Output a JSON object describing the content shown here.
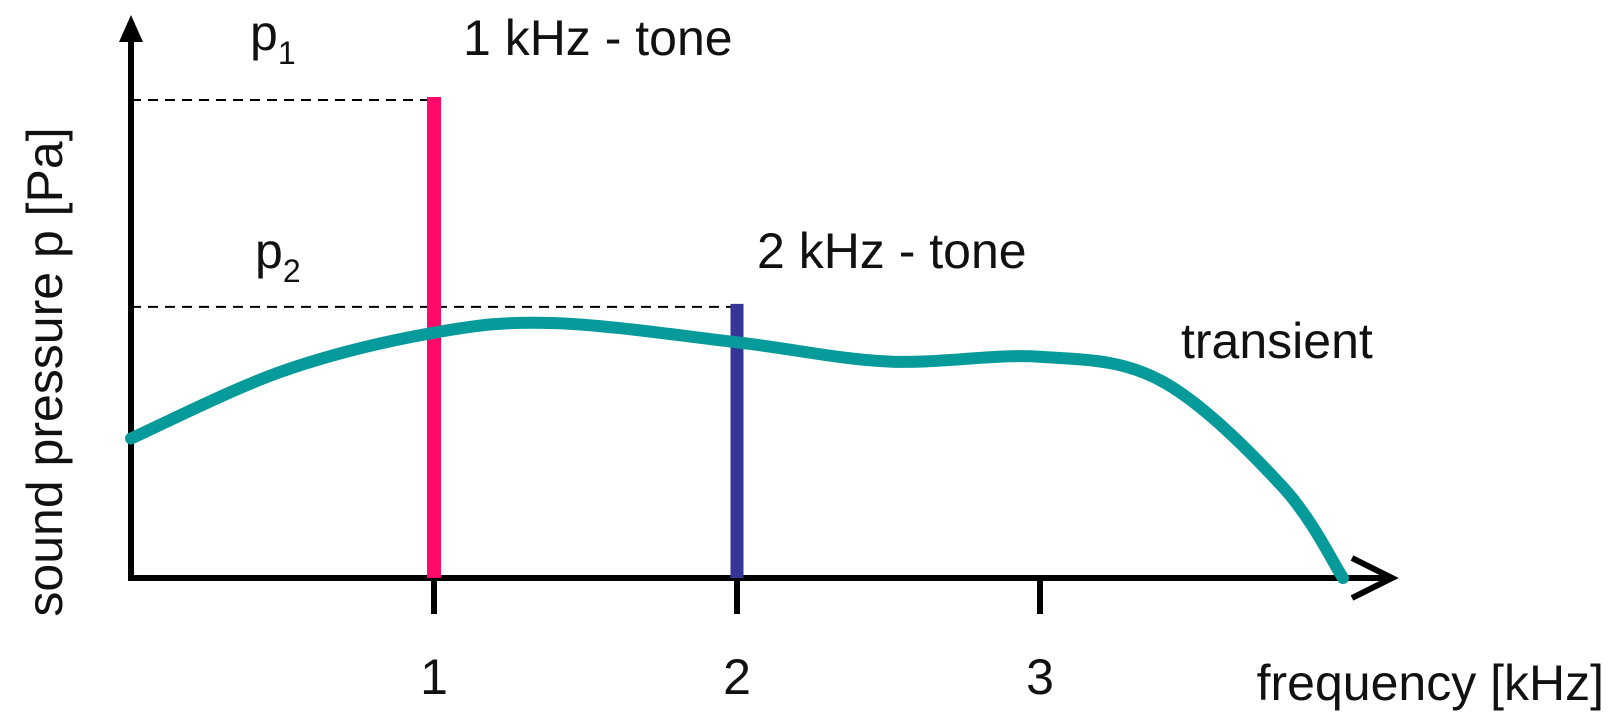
{
  "chart_data": {
    "type": "line",
    "ylabel": "sound pressure p [Pa]",
    "xlabel": "frequency [kHz]",
    "x_ticks": [
      "1",
      "2",
      "3"
    ],
    "xlim": [
      0,
      4.15
    ],
    "ylim": [
      0,
      1
    ],
    "grid": false,
    "legend": "none",
    "series": [
      {
        "name": "transient",
        "x": [
          0,
          0.5,
          1,
          1.4,
          2,
          2.5,
          3,
          3.4,
          3.8,
          4.0
        ],
        "y": [
          0.29,
          0.43,
          0.51,
          0.53,
          0.49,
          0.45,
          0.46,
          0.41,
          0.19,
          0.0
        ],
        "color": "#069a9a"
      }
    ],
    "tones": [
      {
        "label": "1 kHz - tone",
        "x": 1,
        "y": 1.0,
        "color": "#ff0a6b",
        "p_base": "p",
        "p_sub": "1"
      },
      {
        "label": "2 kHz - tone",
        "x": 2,
        "y": 0.57,
        "color": "#343797",
        "p_base": "p",
        "p_sub": "2"
      }
    ]
  }
}
